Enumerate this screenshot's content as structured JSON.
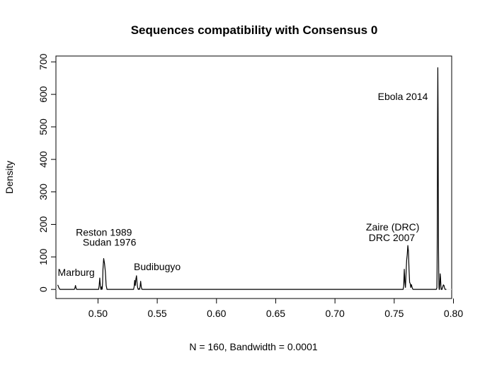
{
  "chart_data": {
    "type": "line",
    "title": "Sequences compatibility with Consensus 0",
    "xlabel": "N = 160, Bandwidth = 0.0001",
    "ylabel": "Density",
    "xlim": [
      0.4645,
      0.7985
    ],
    "ylim": [
      -28,
      718
    ],
    "x_ticks": [
      0.5,
      0.55,
      0.6,
      0.65,
      0.7,
      0.75,
      0.8
    ],
    "x_tick_labels": [
      "0.50",
      "0.55",
      "0.60",
      "0.65",
      "0.70",
      "0.75",
      "0.80"
    ],
    "y_ticks": [
      0,
      100,
      200,
      300,
      400,
      500,
      600,
      700
    ],
    "y_tick_labels": [
      "0",
      "100",
      "200",
      "300",
      "400",
      "500",
      "600",
      "700"
    ],
    "grid": false,
    "series": [
      {
        "x": [
          0.466,
          0.4665,
          0.467,
          0.4675,
          0.468,
          0.48,
          0.4805,
          0.481,
          0.4815,
          0.482,
          0.5005,
          0.501,
          0.5015,
          0.502,
          0.5025,
          0.503,
          0.5033,
          0.5036,
          0.5039,
          0.5042,
          0.5048,
          0.5055,
          0.5062,
          0.5069,
          0.5076,
          0.5083,
          0.509,
          0.5097,
          0.5104,
          0.5108,
          0.5112,
          0.5115,
          0.53,
          0.5305,
          0.531,
          0.5315,
          0.532,
          0.5325,
          0.533,
          0.5335,
          0.534,
          0.5345,
          0.535,
          0.5355,
          0.536,
          0.5365,
          0.537,
          0.5375,
          0.7575,
          0.758,
          0.7585,
          0.759,
          0.7595,
          0.76,
          0.7605,
          0.761,
          0.7615,
          0.762,
          0.7625,
          0.763,
          0.7635,
          0.764,
          0.7645,
          0.765,
          0.7655,
          0.766,
          0.7665,
          0.767,
          0.7675,
          0.7855,
          0.786,
          0.7862,
          0.7864,
          0.7866,
          0.7868,
          0.787,
          0.7872,
          0.7874,
          0.7876,
          0.7878,
          0.788,
          0.7882,
          0.7885,
          0.7888,
          0.7891,
          0.7894,
          0.7897,
          0.79,
          0.7903,
          0.7906,
          0.791,
          0.7915,
          0.792,
          0.7925,
          0.793,
          0.7935,
          0.794
        ],
        "y": [
          14,
          10,
          5,
          2,
          0,
          0,
          4,
          12,
          4,
          0,
          0,
          12,
          35,
          10,
          0,
          8,
          0,
          3,
          22,
          62,
          95,
          80,
          55,
          12,
          0,
          0,
          0,
          0,
          0,
          0,
          0,
          0,
          0,
          8,
          28,
          12,
          32,
          42,
          18,
          5,
          0,
          2,
          0,
          8,
          25,
          8,
          1,
          0,
          0,
          10,
          62,
          22,
          6,
          50,
          90,
          108,
          135,
          118,
          62,
          22,
          18,
          6,
          15,
          8,
          2,
          0,
          0,
          0,
          0,
          0,
          5,
          65,
          230,
          520,
          682,
          560,
          300,
          120,
          38,
          6,
          0,
          0,
          20,
          48,
          35,
          12,
          0,
          0,
          0,
          4,
          8,
          14,
          12,
          4,
          0,
          0,
          0
        ]
      }
    ],
    "annotations": [
      {
        "text": "Ebola 2014",
        "x": 0.7573,
        "y": 594
      },
      {
        "text": "Reston 1989",
        "x": 0.505,
        "y": 176
      },
      {
        "text": "Sudan 1976",
        "x": 0.5097,
        "y": 145
      },
      {
        "text": "Zaire (DRC)",
        "x": 0.7487,
        "y": 192
      },
      {
        "text": "DRC 2007",
        "x": 0.748,
        "y": 160
      },
      {
        "text": "Budibugyo",
        "x": 0.55,
        "y": 70
      },
      {
        "text": "Marburg",
        "x": 0.4816,
        "y": 53
      }
    ]
  }
}
